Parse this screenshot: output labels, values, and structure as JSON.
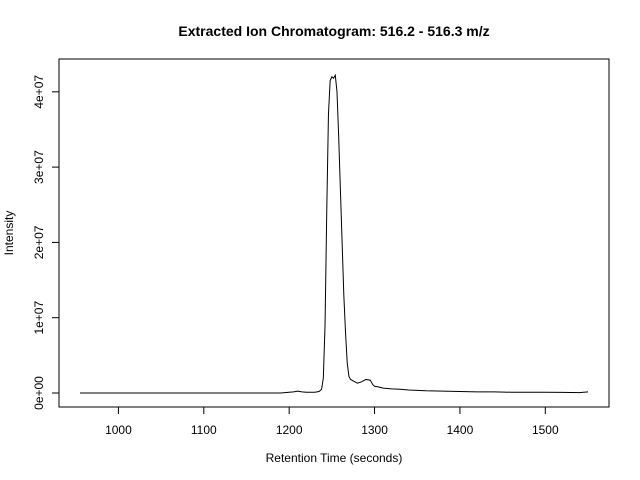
{
  "chart_data": {
    "type": "line",
    "title": "Extracted Ion Chromatogram: 516.2 - 516.3 m/z",
    "xlabel": "Retention Time (seconds)",
    "ylabel": "Intensity",
    "xlim": [
      955,
      1550
    ],
    "ylim": [
      0,
      42500000
    ],
    "x_ticks": [
      1000,
      1100,
      1200,
      1300,
      1400,
      1500
    ],
    "x_tick_labels": [
      "1000",
      "1100",
      "1200",
      "1300",
      "1400",
      "1500"
    ],
    "y_ticks": [
      0,
      10000000,
      20000000,
      30000000,
      40000000
    ],
    "y_tick_labels": [
      "0e+00",
      "1e+07",
      "2e+07",
      "3e+07",
      "4e+07"
    ],
    "grid": false,
    "legend": "none",
    "line_color": "#000000",
    "series": [
      {
        "x": [
          955,
          1000,
          1050,
          1100,
          1150,
          1190,
          1200,
          1205,
          1210,
          1215,
          1220,
          1225,
          1230,
          1235,
          1238,
          1240,
          1242,
          1244,
          1246,
          1248,
          1250,
          1252,
          1254,
          1256,
          1258,
          1260,
          1262,
          1264,
          1266,
          1268,
          1270,
          1272,
          1275,
          1280,
          1285,
          1290,
          1295,
          1298,
          1300,
          1305,
          1310,
          1320,
          1330,
          1340,
          1350,
          1360,
          1380,
          1400,
          1420,
          1440,
          1460,
          1480,
          1500,
          1520,
          1540,
          1550
        ],
        "y": [
          0,
          0,
          0,
          0,
          0,
          0,
          100000,
          150000,
          250000,
          150000,
          100000,
          100000,
          100000,
          200000,
          500000,
          2000000,
          9000000,
          24000000,
          37000000,
          41500000,
          42000000,
          41800000,
          42200000,
          40000000,
          34000000,
          27000000,
          20000000,
          13000000,
          8000000,
          4000000,
          2200000,
          1800000,
          1600000,
          1300000,
          1500000,
          1800000,
          1700000,
          1100000,
          900000,
          800000,
          650000,
          550000,
          500000,
          400000,
          350000,
          300000,
          250000,
          200000,
          150000,
          150000,
          100000,
          100000,
          100000,
          80000,
          50000,
          150000
        ]
      }
    ]
  }
}
